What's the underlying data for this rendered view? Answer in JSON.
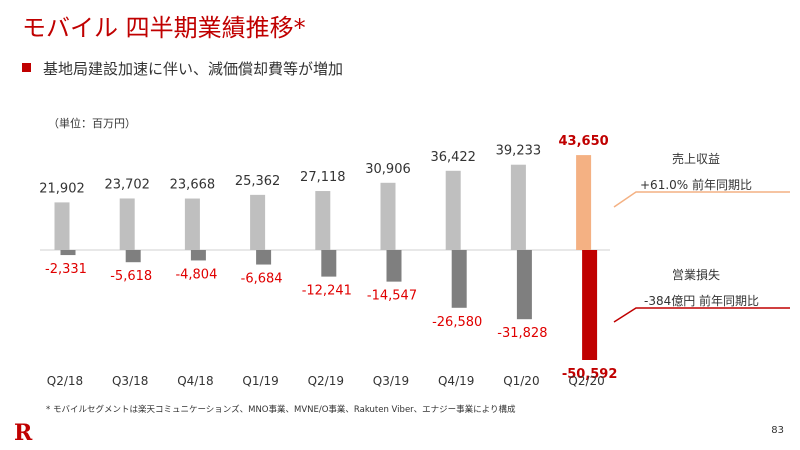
{
  "title": "モバイル 四半期業績推移*",
  "subtitle": "基地局建設加速に伴い、減価償却費等が増加",
  "unit_label": "（単位：百万円）",
  "footnote": "* モバイルセグメントは楽天コミュニケーションズ、MNO事業、MVNE/O事業、Rakuten Viber、エナジー事業により構成",
  "page_number": "83",
  "logo_text": "R",
  "colors": {
    "revenue_bar": "#bfbfbf",
    "income_bar": "#7f7f7f",
    "highlight_revenue": "#f4b183",
    "highlight_income": "#c00000",
    "negative_text": "#e00000",
    "accent_line": "#f4b183",
    "accent_line_dark": "#c00000"
  },
  "side": {
    "revenue_label": "売上収益",
    "revenue_yoy": "+61.0% 前年同期比",
    "income_label": "営業損失",
    "income_yoy": "-384億円 前年同期比"
  },
  "chart_data": {
    "type": "bar",
    "categories": [
      "Q2/18",
      "Q3/18",
      "Q4/18",
      "Q1/19",
      "Q2/19",
      "Q3/19",
      "Q4/19",
      "Q1/20",
      "Q2/20"
    ],
    "series": [
      {
        "name": "売上収益",
        "values": [
          21902,
          23702,
          23668,
          25362,
          27118,
          30906,
          36422,
          39233,
          43650
        ]
      },
      {
        "name": "営業損失",
        "values": [
          -2331,
          -5618,
          -4804,
          -6684,
          -12241,
          -14547,
          -26580,
          -31828,
          -50592
        ]
      }
    ],
    "value_labels": {
      "revenue": [
        "21,902",
        "23,702",
        "23,668",
        "25,362",
        "27,118",
        "30,906",
        "36,422",
        "39,233",
        "43,650"
      ],
      "income": [
        "-2,331",
        "-5,618",
        "-4,804",
        "-6,684",
        "-12,241",
        "-14,547",
        "-26,580",
        "-31,828",
        "-50,592"
      ]
    },
    "highlight_index": 8,
    "grid": false
  }
}
